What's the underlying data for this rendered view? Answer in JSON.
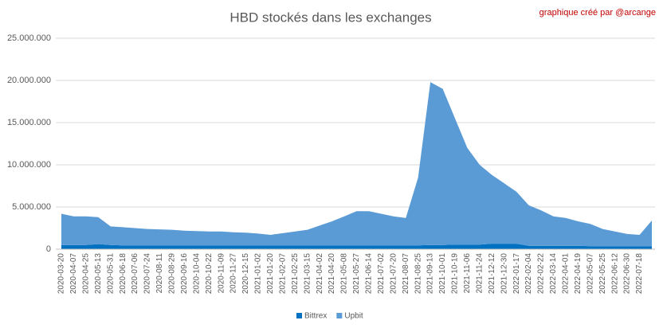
{
  "chart_data": {
    "type": "area",
    "stacked": true,
    "title": "HBD stockés dans les exchanges",
    "annotation": "graphique créé par @arcange",
    "categories": [
      "2020-03-20",
      "2020-04-07",
      "2020-04-25",
      "2020-05-13",
      "2020-05-31",
      "2020-06-18",
      "2020-07-06",
      "2020-07-24",
      "2020-08-11",
      "2020-08-29",
      "2020-09-16",
      "2020-10-04",
      "2020-10-22",
      "2020-11-09",
      "2020-11-27",
      "2020-12-15",
      "2021-01-02",
      "2021-01-20",
      "2021-02-07",
      "2021-02-25",
      "2021-03-15",
      "2021-04-02",
      "2021-04-20",
      "2021-05-08",
      "2021-05-27",
      "2021-06-14",
      "2021-07-02",
      "2021-07-20",
      "2021-08-07",
      "2021-08-25",
      "2021-09-13",
      "2021-10-01",
      "2021-10-19",
      "2021-11-06",
      "2021-11-24",
      "2021-12-12",
      "2021-12-30",
      "2022-01-17",
      "2022-02-04",
      "2022-02-22",
      "2022-03-14",
      "2022-04-01",
      "2022-04-19",
      "2022-05-07",
      "2022-05-25",
      "2022-06-12",
      "2022-06-30",
      "2022-07-18",
      null
    ],
    "series": [
      {
        "name": "Bittrex",
        "color": "#0070c0",
        "values": [
          500000,
          500000,
          500000,
          600000,
          500000,
          450000,
          450000,
          450000,
          450000,
          450000,
          450000,
          450000,
          450000,
          450000,
          450000,
          450000,
          450000,
          450000,
          450000,
          450000,
          450000,
          450000,
          450000,
          450000,
          450000,
          450000,
          450000,
          450000,
          450000,
          450000,
          500000,
          500000,
          550000,
          550000,
          550000,
          650000,
          650000,
          650000,
          400000,
          400000,
          400000,
          400000,
          400000,
          350000,
          350000,
          350000,
          350000,
          350000,
          350000
        ]
      },
      {
        "name": "Upbit",
        "color": "#5b9bd5",
        "values": [
          3700000,
          3400000,
          3400000,
          3200000,
          2200000,
          2150000,
          2050000,
          1950000,
          1900000,
          1850000,
          1750000,
          1700000,
          1650000,
          1650000,
          1550000,
          1500000,
          1400000,
          1250000,
          1450000,
          1650000,
          1850000,
          2350000,
          2850000,
          3450000,
          4050000,
          4050000,
          3750000,
          3450000,
          3250000,
          8050000,
          19300000,
          18500000,
          14950000,
          11450000,
          9450000,
          8150000,
          7150000,
          6150000,
          4800000,
          4200000,
          3500000,
          3300000,
          2900000,
          2650000,
          2050000,
          1750000,
          1450000,
          1350000,
          3050000
        ]
      }
    ],
    "ylim": [
      0,
      25000000
    ],
    "yticks": [
      0,
      {
        "value": 5000000,
        "label": "5.000.000"
      },
      {
        "value": 10000000,
        "label": "10.000.000"
      },
      {
        "value": 15000000,
        "label": "15.000.000"
      },
      {
        "value": 20000000,
        "label": "20.000.000"
      },
      {
        "value": 25000000,
        "label": "25.000.000"
      }
    ],
    "grid": true,
    "legend": "bottom"
  }
}
